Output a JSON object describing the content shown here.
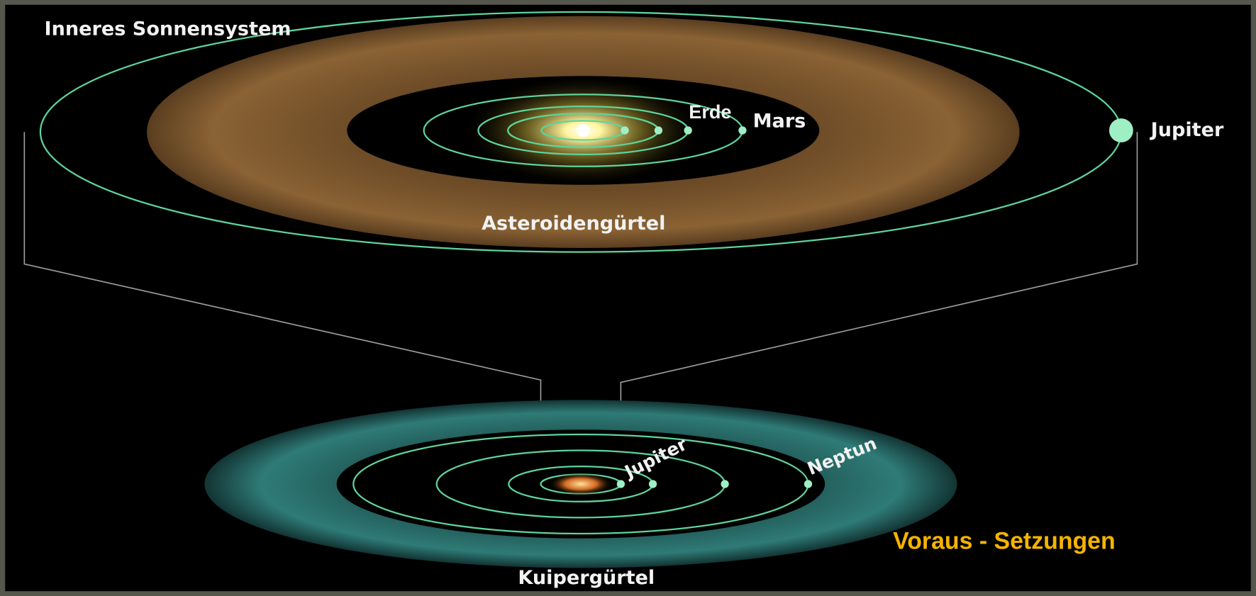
{
  "title": "Inneres Sonnensystem",
  "inner_labels": {
    "earth": "Erde",
    "mars": "Mars",
    "jupiter": "Jupiter",
    "belt": "Asteroidengürtel"
  },
  "outer_labels": {
    "jupiter": "Jupiter",
    "neptune": "Neptun",
    "belt": "Kuipergürtel"
  },
  "caption": "Voraus - Setzungen"
}
